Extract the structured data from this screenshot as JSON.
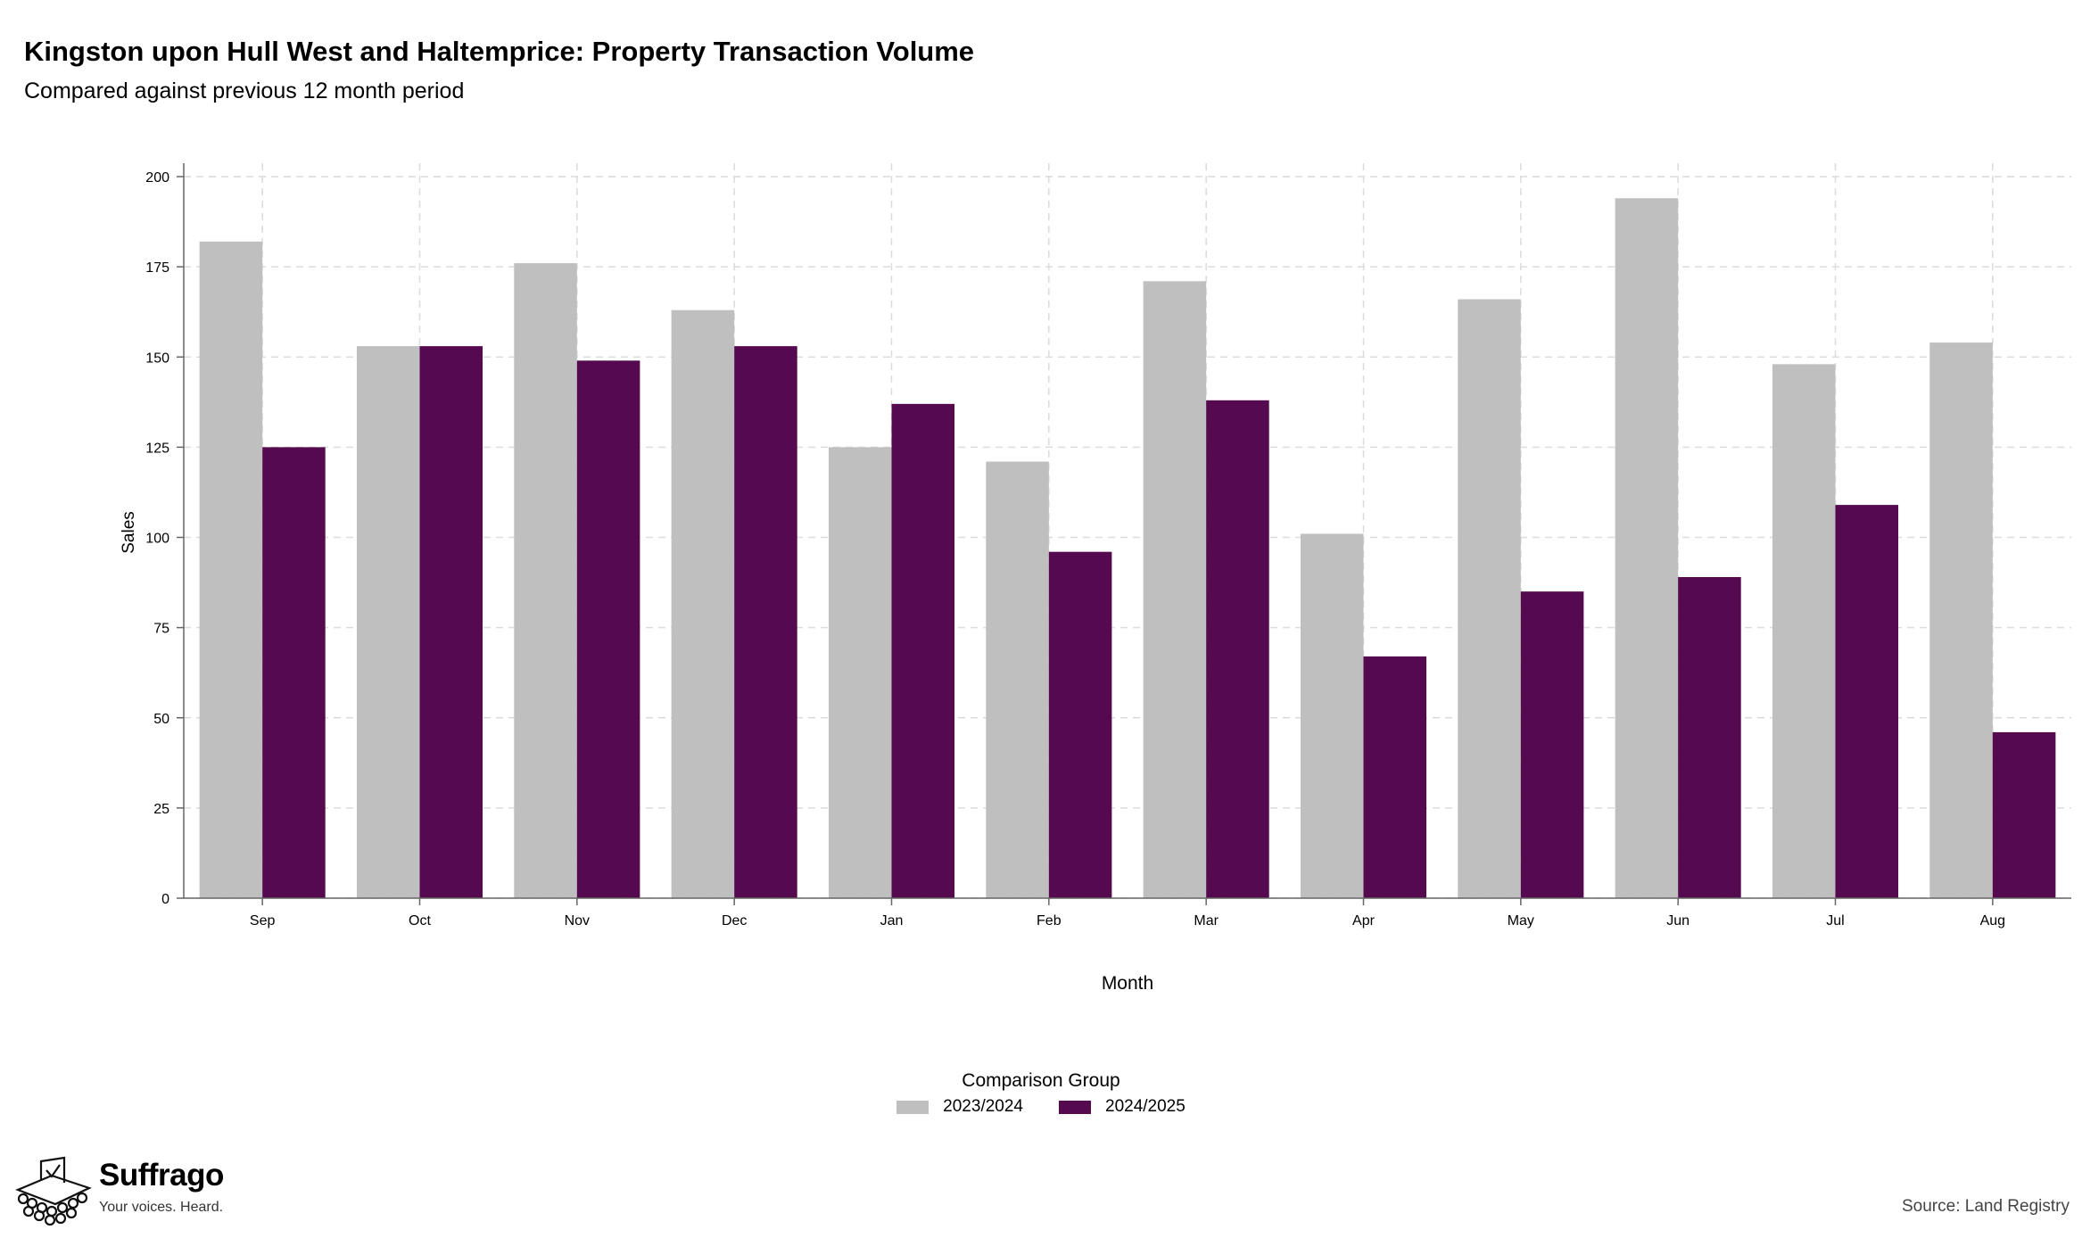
{
  "chart_data": {
    "type": "bar",
    "title": "Kingston upon Hull West and Haltemprice: Property Transaction Volume",
    "subtitle": "Compared against previous 12 month period",
    "xlabel": "Month",
    "ylabel": "Sales",
    "categories": [
      "Sep",
      "Oct",
      "Nov",
      "Dec",
      "Jan",
      "Feb",
      "Mar",
      "Apr",
      "May",
      "Jun",
      "Jul",
      "Aug"
    ],
    "ylim": [
      0,
      200
    ],
    "yticks": [
      0,
      25,
      50,
      75,
      100,
      125,
      150,
      175,
      200
    ],
    "grid": true,
    "legend_title": "Comparison Group",
    "legend_position": "bottom",
    "series": [
      {
        "name": "2023/2024",
        "color": "#bfbfbf",
        "values": [
          182,
          153,
          176,
          163,
          125,
          121,
          171,
          101,
          166,
          194,
          148,
          154
        ]
      },
      {
        "name": "2024/2025",
        "color": "#550a50",
        "values": [
          125,
          153,
          149,
          153,
          137,
          96,
          138,
          67,
          85,
          89,
          109,
          46
        ]
      }
    ]
  },
  "branding": {
    "name": "Suffrago",
    "tagline": "Your voices. Heard.",
    "logo_icon": "ballot-box-icon"
  },
  "source": "Source: Land Registry"
}
